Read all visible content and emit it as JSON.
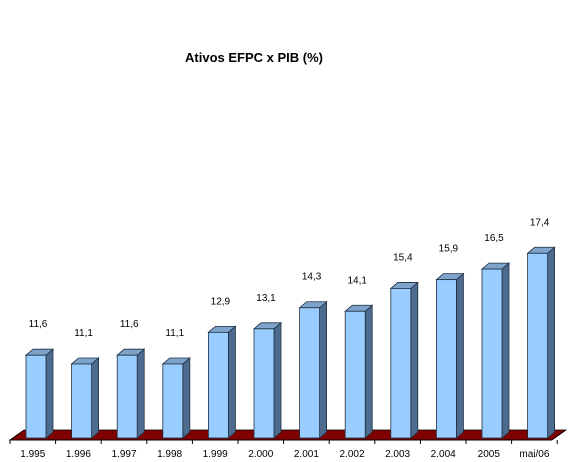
{
  "chart_data": {
    "type": "bar",
    "title": "Ativos EFPC x PIB (%)",
    "categories": [
      "1.995",
      "1.996",
      "1.997",
      "1.998",
      "1.999",
      "2.000",
      "2.001",
      "2.002",
      "2.003",
      "2.004",
      "2005",
      "mai/06"
    ],
    "values": [
      11.6,
      11.1,
      11.6,
      11.1,
      12.9,
      13.1,
      14.3,
      14.1,
      15.4,
      15.9,
      16.5,
      17.4
    ],
    "value_labels": [
      "11,6",
      "11,1",
      "11,6",
      "11,1",
      "12,9",
      "13,1",
      "14,3",
      "14,1",
      "15,4",
      "15,9",
      "16,5",
      "17,4"
    ],
    "xlabel": "",
    "ylabel": "",
    "grid": false,
    "legend": "none",
    "three_d": true,
    "colors": {
      "bar_front": "#99CCFF",
      "bar_side": "#4D6A8F",
      "bar_top": "#7EA4CC",
      "bar_outline": "#1F2F40",
      "floor": "#800000"
    }
  }
}
